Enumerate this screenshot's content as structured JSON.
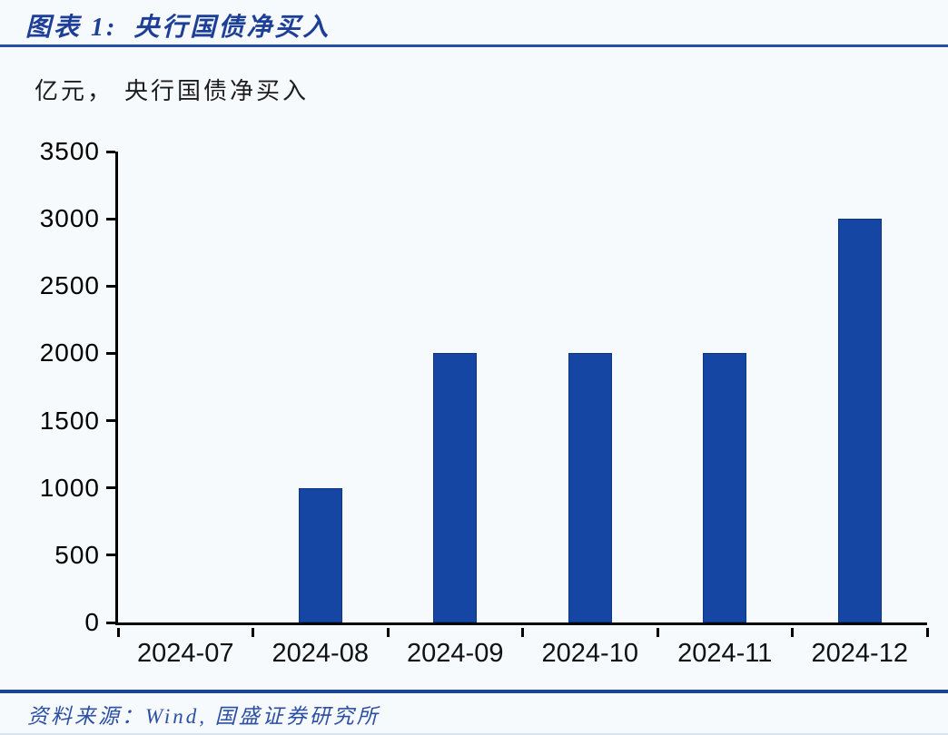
{
  "header": {
    "title_prefix": "图表 1:",
    "title": "央行国债净买入"
  },
  "subtitle": {
    "unit": "亿元，",
    "text": "央行国债净买入"
  },
  "footer": {
    "source_label": "资料来源：",
    "source_text": "Wind,  国盛证券研究所"
  },
  "colors": {
    "bar_fill": "#1546a3",
    "bar_edge": "#0c3584",
    "title_text": "#1e3f97",
    "footer_text": "#2b4fa3",
    "rule_blue": "#2350a5",
    "footer_rule": "#1c4692",
    "axis": "#000000",
    "background": "#f7fafd"
  },
  "chart_data": {
    "type": "bar",
    "title": "亿元，央行国债净买入",
    "categories": [
      "2024-07",
      "2024-08",
      "2024-09",
      "2024-10",
      "2024-11",
      "2024-12"
    ],
    "values": [
      0,
      1000,
      2000,
      2000,
      2000,
      3000
    ],
    "xlabel": "",
    "ylabel": "亿元",
    "ylim": [
      0,
      3500
    ],
    "ytick_step": 500,
    "grid": false,
    "legend_position": "none",
    "bar_color": "#1546a3"
  }
}
